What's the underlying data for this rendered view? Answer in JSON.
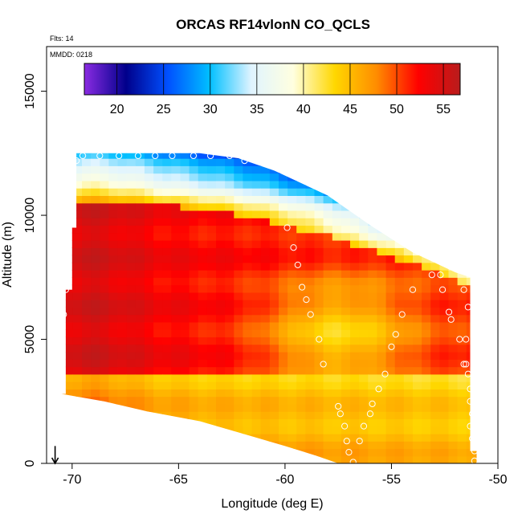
{
  "chart_data": {
    "type": "heatmap",
    "title": "ORCAS RF14vlonN CO_QCLS",
    "subtitle_flts": "Flts: 14",
    "subtitle_mmdd": "MMDD: 0218",
    "xlabel": "Longitude (deg E)",
    "ylabel": "Altitude (m)",
    "xlim": [
      -71.2,
      -50
    ],
    "ylim": [
      0,
      16800
    ],
    "x_ticks": [
      -70,
      -65,
      -60,
      -55,
      -50
    ],
    "y_ticks": [
      0,
      5000,
      10000,
      15000
    ],
    "x_tick_labels": [
      "-70",
      "-65",
      "-60",
      "-55",
      "-50"
    ],
    "y_tick_labels": [
      "0",
      "5000",
      "10000",
      "15000"
    ],
    "colorbar": {
      "range": [
        16.5,
        56.8
      ],
      "ticks": [
        20,
        25,
        30,
        35,
        40,
        45,
        50,
        55
      ],
      "tick_labels": [
        "20",
        "25",
        "30",
        "35",
        "40",
        "45",
        "50",
        "55"
      ]
    },
    "top_boundary": [
      [
        -70.0,
        12500
      ],
      [
        -67.0,
        12500
      ],
      [
        -64.0,
        12500
      ],
      [
        -62.2,
        12300
      ],
      [
        -60.5,
        11800
      ],
      [
        -58.0,
        10800
      ],
      [
        -56.0,
        9600
      ],
      [
        -54.0,
        8500
      ],
      [
        -52.0,
        7700
      ],
      [
        -51.3,
        7500
      ]
    ],
    "bottom_boundary": [
      [
        -70.5,
        2800
      ],
      [
        -68.5,
        2500
      ],
      [
        -66.5,
        2100
      ],
      [
        -64.0,
        1700
      ],
      [
        -62.0,
        1200
      ],
      [
        -60.0,
        700
      ],
      [
        -58.5,
        300
      ],
      [
        -57.5,
        0
      ],
      [
        -51.0,
        0
      ]
    ],
    "left_edges": [
      [
        0,
        2800,
        -70.5
      ],
      [
        2800,
        7000,
        -70.3
      ],
      [
        7000,
        9500,
        -70.0
      ],
      [
        9500,
        12500,
        -69.8
      ]
    ],
    "right_edges": [
      [
        0,
        500,
        -51.0
      ],
      [
        500,
        7500,
        -51.3
      ]
    ],
    "flight_track": [
      [
        -69.8,
        12200
      ],
      [
        -69.5,
        12400
      ],
      [
        -68.7,
        12400
      ],
      [
        -67.8,
        12400
      ],
      [
        -66.9,
        12400
      ],
      [
        -66.1,
        12400
      ],
      [
        -65.3,
        12400
      ],
      [
        -64.3,
        12400
      ],
      [
        -63.5,
        12400
      ],
      [
        -62.6,
        12400
      ],
      [
        -61.9,
        12200
      ],
      [
        -59.9,
        9500
      ],
      [
        -59.6,
        8700
      ],
      [
        -59.4,
        8000
      ],
      [
        -59.2,
        7100
      ],
      [
        -59.0,
        6600
      ],
      [
        -58.8,
        6000
      ],
      [
        -58.4,
        5000
      ],
      [
        -58.2,
        4000
      ],
      [
        -57.5,
        2300
      ],
      [
        -57.4,
        2000
      ],
      [
        -57.2,
        1500
      ],
      [
        -57.1,
        900
      ],
      [
        -57.0,
        450
      ],
      [
        -56.8,
        50
      ],
      [
        -70.3,
        7000
      ],
      [
        -70.4,
        6000
      ],
      [
        -70.5,
        5000
      ],
      [
        -70.6,
        4000
      ],
      [
        -70.8,
        2900
      ],
      [
        -56.5,
        900
      ],
      [
        -56.3,
        1500
      ],
      [
        -56.0,
        2000
      ],
      [
        -55.9,
        2400
      ],
      [
        -55.6,
        3000
      ],
      [
        -55.3,
        3600
      ],
      [
        -55.0,
        4700
      ],
      [
        -54.8,
        5200
      ],
      [
        -54.5,
        6000
      ],
      [
        -54.0,
        7000
      ],
      [
        -53.1,
        7600
      ],
      [
        -52.7,
        7600
      ],
      [
        -52.6,
        7000
      ],
      [
        -52.3,
        6100
      ],
      [
        -52.2,
        5800
      ],
      [
        -51.8,
        5000
      ],
      [
        -51.6,
        4000
      ],
      [
        -51.4,
        3600
      ],
      [
        -51.3,
        3000
      ],
      [
        -51.3,
        2500
      ],
      [
        -51.2,
        2000
      ],
      [
        -51.3,
        1500
      ],
      [
        -51.2,
        1000
      ],
      [
        -51.1,
        500
      ],
      [
        -51.1,
        100
      ],
      [
        -51.5,
        4000
      ],
      [
        -51.5,
        5000
      ],
      [
        -51.4,
        6300
      ],
      [
        -51.6,
        7000
      ]
    ],
    "arrow_marker": {
      "x": -70.8,
      "y_from": 700,
      "y_to": 0
    }
  },
  "colors": {
    "background": "#ffffff",
    "axes": "#000000",
    "track_marker": "#ffffff",
    "colormap": [
      "#8a2be2",
      "#00008b",
      "#0050ff",
      "#00bfff",
      "#e0f4ff",
      "#ffffe0",
      "#ffd700",
      "#ff8c00",
      "#ff0000",
      "#b81c1c"
    ]
  }
}
